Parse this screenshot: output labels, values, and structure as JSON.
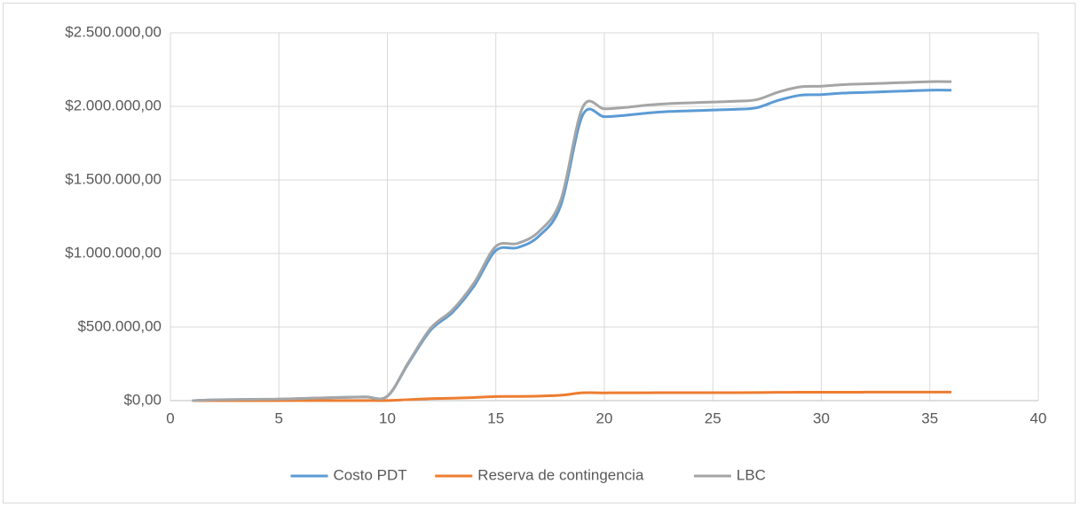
{
  "chart_data": {
    "type": "line",
    "x": [
      1,
      2,
      3,
      4,
      5,
      6,
      7,
      8,
      9,
      10,
      11,
      12,
      13,
      14,
      15,
      16,
      17,
      18,
      19,
      20,
      21,
      22,
      23,
      24,
      25,
      26,
      27,
      28,
      29,
      30,
      31,
      32,
      33,
      34,
      35,
      36
    ],
    "series": [
      {
        "name": "Costo PDT",
        "color": "#5b9bd5",
        "values": [
          0,
          5000,
          7000,
          9000,
          10000,
          14000,
          18000,
          22000,
          25000,
          30000,
          260000,
          480000,
          600000,
          780000,
          1020000,
          1040000,
          1120000,
          1330000,
          1940000,
          1930000,
          1940000,
          1955000,
          1965000,
          1970000,
          1975000,
          1980000,
          1990000,
          2040000,
          2075000,
          2080000,
          2090000,
          2095000,
          2100000,
          2105000,
          2110000,
          2110000
        ]
      },
      {
        "name": "Reserva de contingencia",
        "color": "#ed7d31",
        "values": [
          0,
          138,
          193,
          248,
          275,
          385,
          495,
          605,
          688,
          825,
          7150,
          13200,
          16500,
          21450,
          28050,
          28600,
          30800,
          36575,
          53350,
          53075,
          53350,
          53763,
          54038,
          54175,
          54313,
          54450,
          54725,
          56100,
          57063,
          57200,
          57475,
          57613,
          57750,
          57888,
          58025,
          58025
        ]
      },
      {
        "name": "LBC",
        "color": "#a5a5a5",
        "values": [
          0,
          5138,
          7193,
          9248,
          10275,
          14385,
          18495,
          22605,
          25688,
          30825,
          267150,
          493200,
          616500,
          801450,
          1048050,
          1068600,
          1150800,
          1366575,
          1993350,
          1983075,
          1993350,
          2008763,
          2019038,
          2024175,
          2029313,
          2034450,
          2044725,
          2096100,
          2132063,
          2137200,
          2147475,
          2152613,
          2157750,
          2162888,
          2168025,
          2168025
        ]
      }
    ],
    "xlim": [
      0,
      40
    ],
    "xticks": [
      0,
      5,
      10,
      15,
      20,
      25,
      30,
      35,
      40
    ],
    "ylim": [
      0,
      2500000
    ],
    "yticks": [
      {
        "value": 0,
        "label": "$0,00"
      },
      {
        "value": 500000,
        "label": "$500.000,00"
      },
      {
        "value": 1000000,
        "label": "$1.000.000,00"
      },
      {
        "value": 1500000,
        "label": "$1.500.000,00"
      },
      {
        "value": 2000000,
        "label": "$2.000.000,00"
      },
      {
        "value": 2500000,
        "label": "$2.500.000,00"
      }
    ],
    "grid": true,
    "legend": "bottom"
  }
}
